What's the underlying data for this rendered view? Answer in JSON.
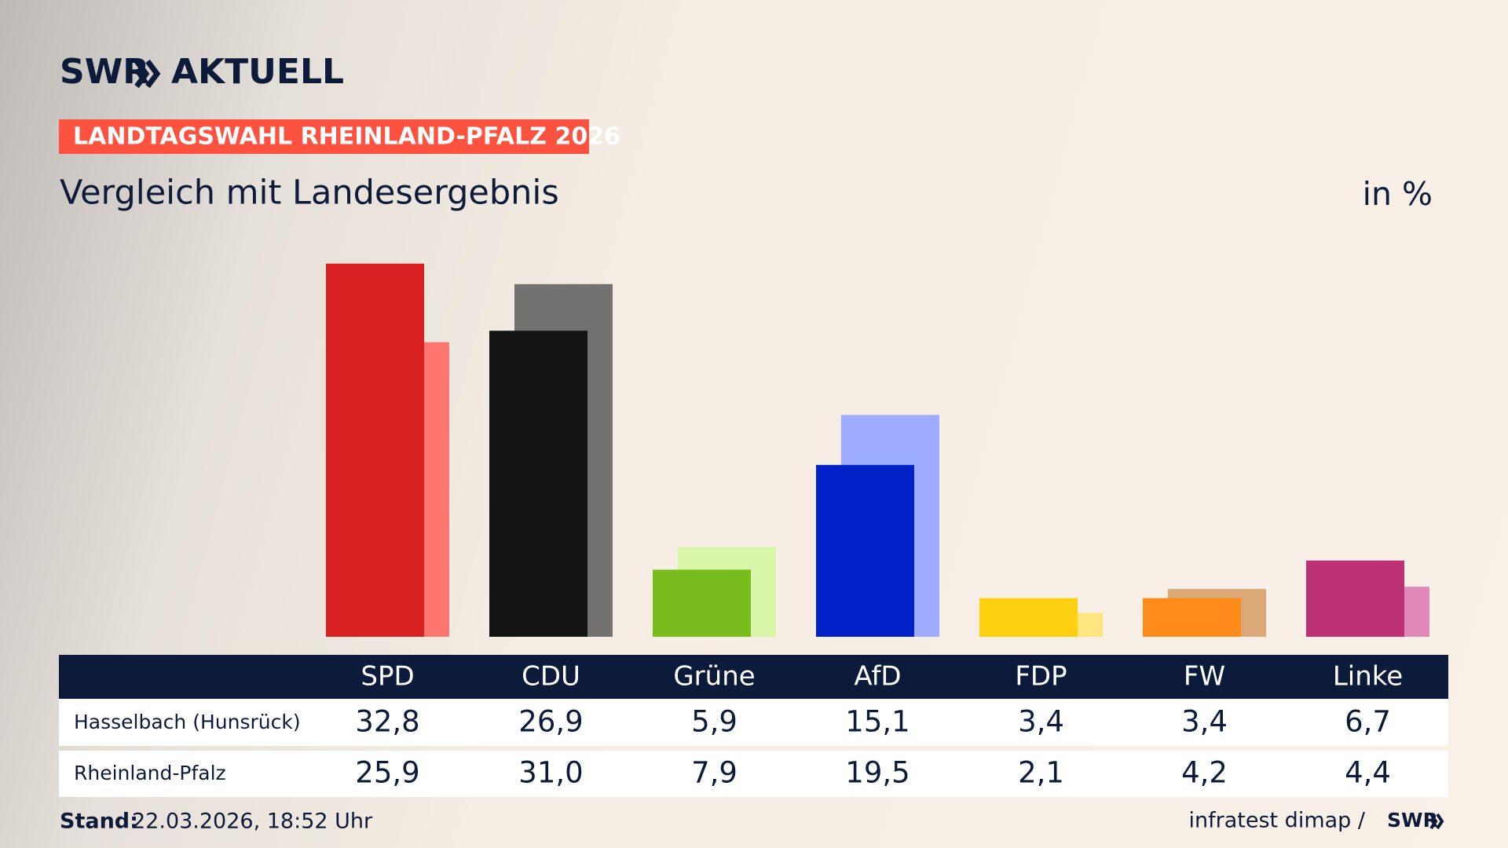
{
  "chart_data": {
    "type": "bar",
    "brand": "SWR",
    "brand_suffix": "AKTUELL",
    "title": "LANDTAGSWAHL RHEINLAND-PFALZ 2026",
    "subtitle": "Vergleich mit Landesergebnis",
    "unit": "in %",
    "categories": [
      "SPD",
      "CDU",
      "Grüne",
      "AfD",
      "FDP",
      "FW",
      "Linke"
    ],
    "series": [
      {
        "name": "Hasselbach (Hunsrück)",
        "colors": [
          "#d82020",
          "#141414",
          "#78bc1e",
          "#0020c8",
          "#ffd010",
          "#ff8c1a",
          "#be3075"
        ],
        "values": [
          32.8,
          26.9,
          5.9,
          15.1,
          3.4,
          3.4,
          6.7
        ],
        "value_labels": [
          "32,8",
          "26,9",
          "5,9",
          "15,1",
          "3,4",
          "3,4",
          "6,7"
        ]
      },
      {
        "name": "Rheinland-Pfalz",
        "colors": [
          "#ff7570",
          "#747270",
          "#d8f5a8",
          "#9eacff",
          "#ffe580",
          "#dda877",
          "#e089b8"
        ],
        "values": [
          25.9,
          31.0,
          7.9,
          19.5,
          2.1,
          4.2,
          4.4
        ],
        "value_labels": [
          "25,9",
          "31,0",
          "7,9",
          "19,5",
          "2,1",
          "4,2",
          "4,4"
        ]
      }
    ],
    "footer_label": "Stand:",
    "footer_date": "22.03.2026, 18:52 Uhr",
    "source": "infratest dimap /",
    "source_brand": "SWR"
  }
}
